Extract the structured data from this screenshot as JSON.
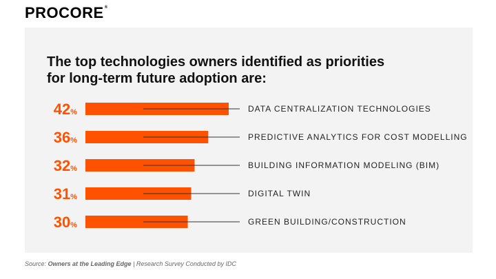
{
  "logo": {
    "text": "PROCORE",
    "mark": "®"
  },
  "headline": {
    "line1": "The top technologies owners identified as priorities",
    "line2": "for long-term future adoption are:"
  },
  "colors": {
    "bar": "#ff5200",
    "panel": "#f3f3f3",
    "leader": "#333333"
  },
  "chart_data": {
    "type": "bar",
    "orientation": "horizontal",
    "categories": [
      "DATA CENTRALIZATION TECHNOLOGIES",
      "PREDICTIVE ANALYTICS FOR COST MODELLING",
      "BUILDING INFORMATION MODELING (BIM)",
      "DIGITAL TWIN",
      "GREEN BUILDING/CONSTRUCTION"
    ],
    "values": [
      42,
      36,
      32,
      31,
      30
    ],
    "value_labels": [
      "42",
      "36",
      "32",
      "31",
      "30"
    ],
    "value_suffix": "%",
    "title": "The top technologies owners identified as priorities for long-term future adoption are:",
    "xlabel": "",
    "ylabel": "",
    "grid": false,
    "legend": "none"
  },
  "source": {
    "prefix": "Source: ",
    "title": "Owners at the Leading Edge",
    "separator": " | ",
    "detail": "Research Survey Conducted by IDC"
  }
}
